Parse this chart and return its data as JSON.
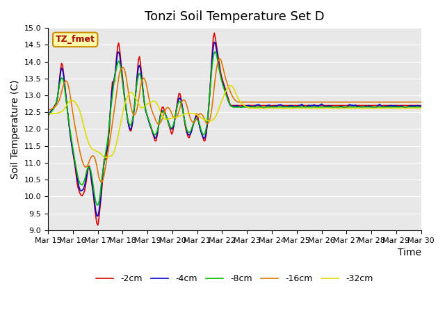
{
  "title": "Tonzi Soil Temperature Set D",
  "xlabel": "Time",
  "ylabel": "Soil Temperature (C)",
  "ylim": [
    9.0,
    15.0
  ],
  "yticks": [
    9.0,
    9.5,
    10.0,
    10.5,
    11.0,
    11.5,
    12.0,
    12.5,
    13.0,
    13.5,
    14.0,
    14.5,
    15.0
  ],
  "xtick_labels": [
    "Mar 15",
    "Mar 16",
    "Mar 17",
    "Mar 18",
    "Mar 19",
    "Mar 20",
    "Mar 21",
    "Mar 22",
    "Mar 23",
    "Mar 24",
    "Mar 25",
    "Mar 26",
    "Mar 27",
    "Mar 28",
    "Mar 29",
    "Mar 30"
  ],
  "series_colors": [
    "#dd0000",
    "#0000cc",
    "#00bb00",
    "#dd7700",
    "#dddd00"
  ],
  "series_labels": [
    "-2cm",
    "-4cm",
    "-8cm",
    "-16cm",
    "-32cm"
  ],
  "annotation_text": "TZ_fmet",
  "annotation_bg": "#ffffaa",
  "annotation_border": "#cc8800",
  "annotation_text_color": "#aa0000",
  "bg_color": "#e8e8e8",
  "plot_bg_color": "#e8e8e8",
  "linewidth": 1.2,
  "title_fontsize": 13,
  "axis_fontsize": 10,
  "tick_fontsize": 8
}
